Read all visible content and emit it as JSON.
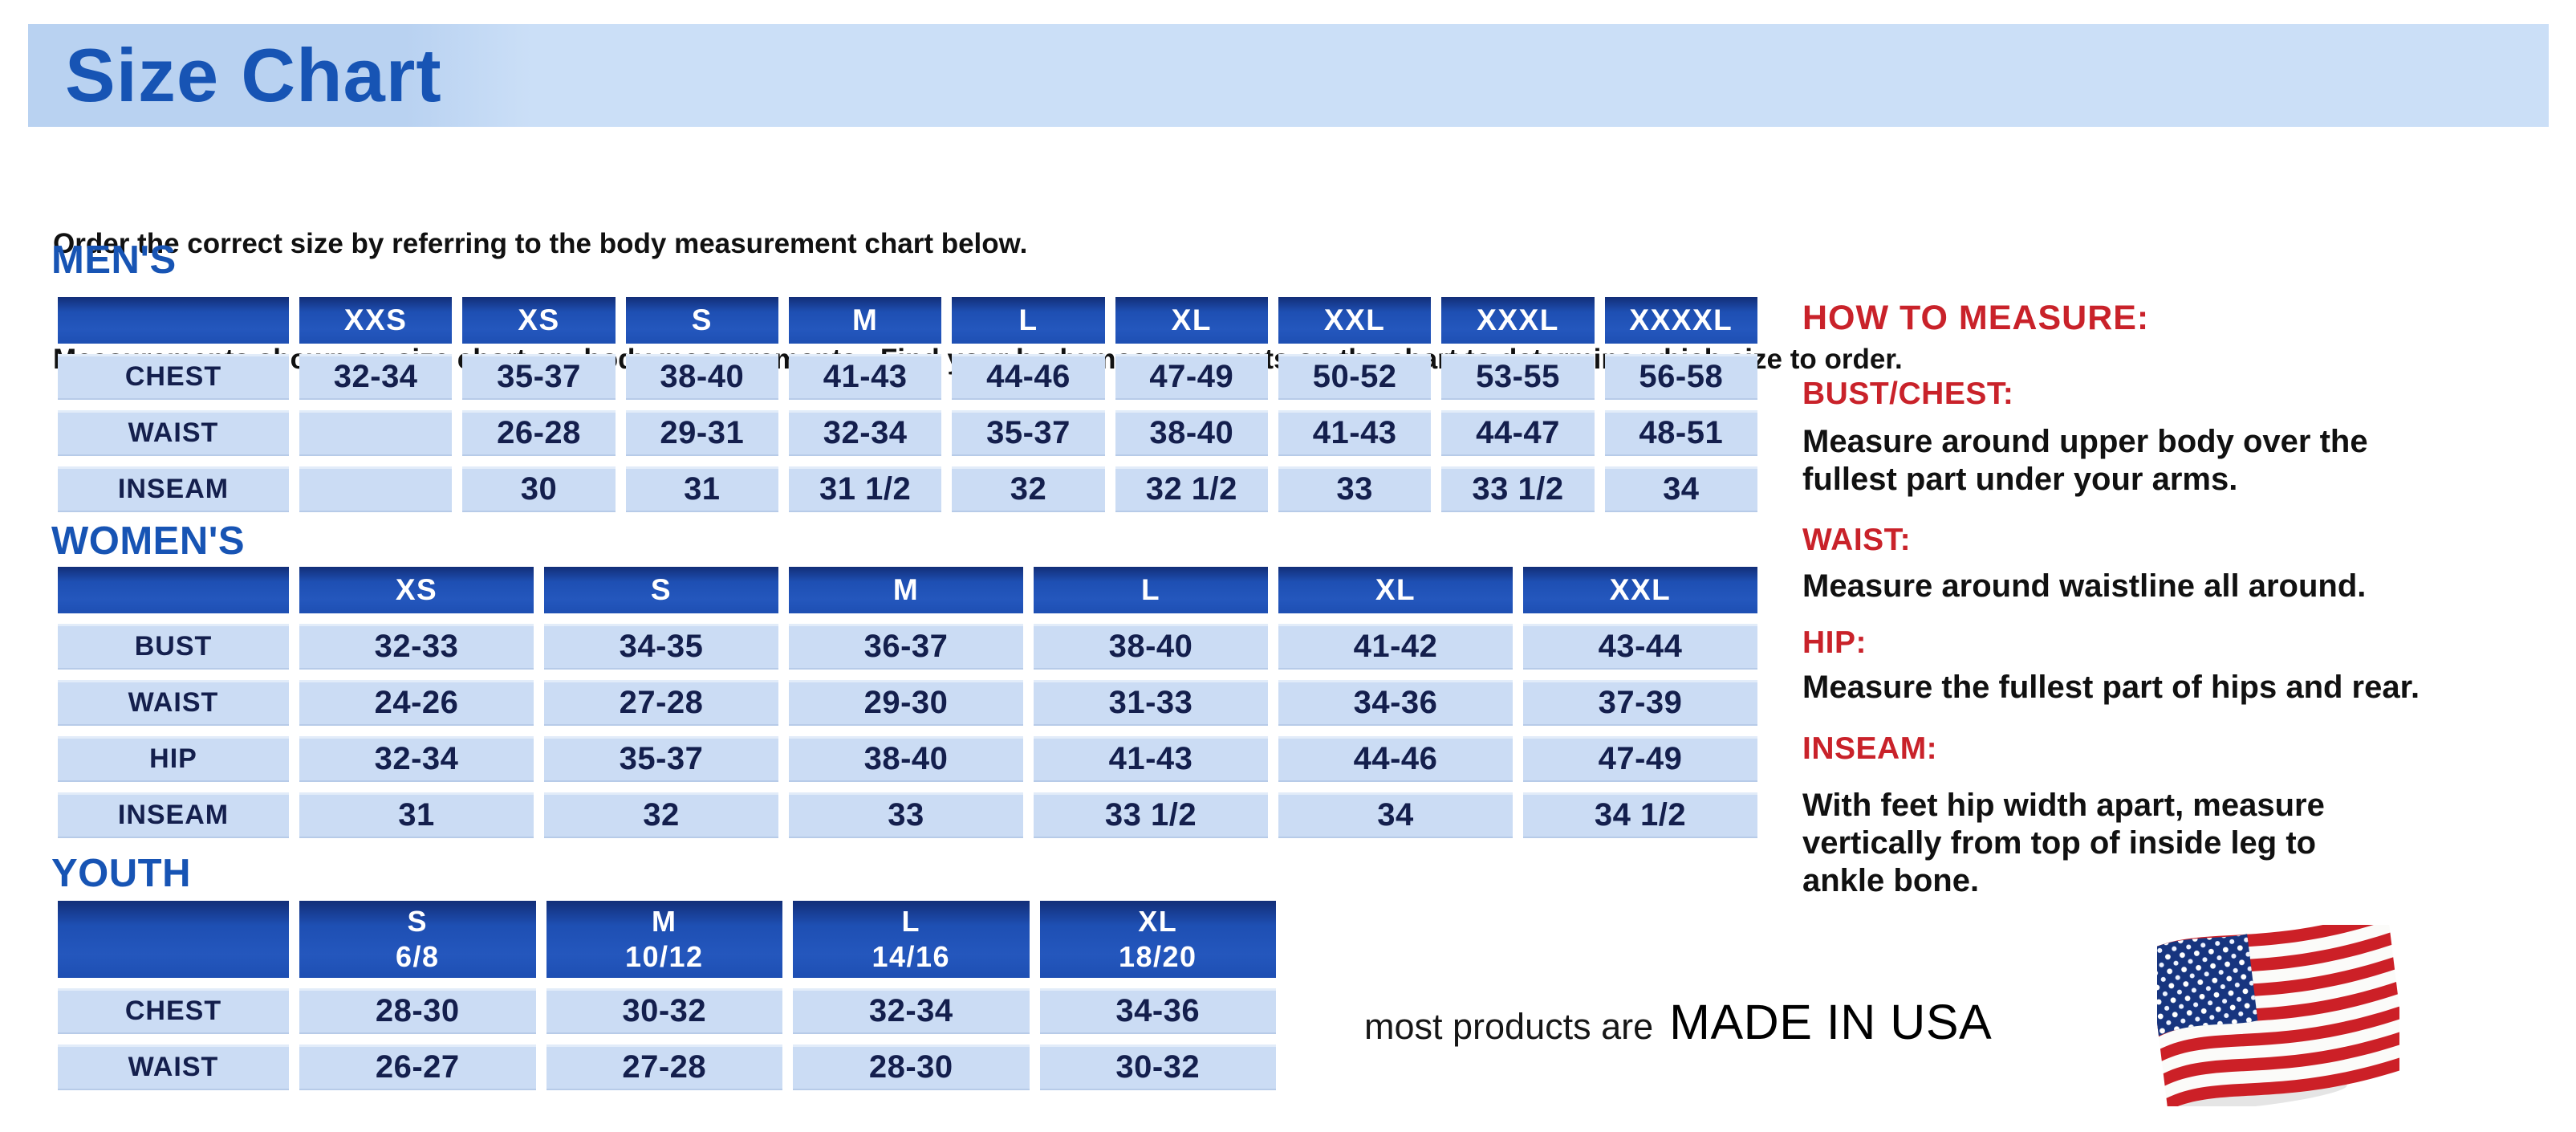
{
  "page": {
    "title": "Size Chart",
    "intro": [
      "Order the correct size by referring to the body measurement chart below.",
      "Measurements shown on size chart are body measurements.  Find your body measurements on the chart to determine which size to order."
    ]
  },
  "colors": {
    "band_blue_left": "#b9d2f1",
    "band_blue_right": "#cbdff7",
    "title_blue": "#1754b4",
    "section_blue": "#1754b4",
    "header_blue": "#1e4fb3",
    "header_blue_dark": "#122e78",
    "cell_blue": "#cbdcf4",
    "cell_text": "#141f4d",
    "red": "#c9222a",
    "text_black": "#111111"
  },
  "tables": {
    "mens": {
      "section_label": "MEN'S",
      "columns": [
        "XXS",
        "XS",
        "S",
        "M",
        "L",
        "XL",
        "XXL",
        "XXXL",
        "XXXXL"
      ],
      "rows": [
        {
          "label": "CHEST",
          "cells": [
            "32-34",
            "35-37",
            "38-40",
            "41-43",
            "44-46",
            "47-49",
            "50-52",
            "53-55",
            "56-58"
          ]
        },
        {
          "label": "WAIST",
          "cells": [
            "",
            "26-28",
            "29-31",
            "32-34",
            "35-37",
            "38-40",
            "41-43",
            "44-47",
            "48-51"
          ]
        },
        {
          "label": "INSEAM",
          "cells": [
            "",
            "30",
            "31",
            "31 1/2",
            "32",
            "32 1/2",
            "33",
            "33 1/2",
            "34"
          ]
        }
      ]
    },
    "womens": {
      "section_label": "WOMEN'S",
      "columns": [
        "XS",
        "S",
        "M",
        "L",
        "XL",
        "XXL"
      ],
      "rows": [
        {
          "label": "BUST",
          "cells": [
            "32-33",
            "34-35",
            "36-37",
            "38-40",
            "41-42",
            "43-44"
          ]
        },
        {
          "label": "WAIST",
          "cells": [
            "24-26",
            "27-28",
            "29-30",
            "31-33",
            "34-36",
            "37-39"
          ]
        },
        {
          "label": "HIP",
          "cells": [
            "32-34",
            "35-37",
            "38-40",
            "41-43",
            "44-46",
            "47-49"
          ]
        },
        {
          "label": "INSEAM",
          "cells": [
            "31",
            "32",
            "33",
            "33 1/2",
            "34",
            "34 1/2"
          ]
        }
      ]
    },
    "youth": {
      "section_label": "YOUTH",
      "columns": [
        "S\n6/8",
        "M\n10/12",
        "L\n14/16",
        "XL\n18/20"
      ],
      "rows": [
        {
          "label": "CHEST",
          "cells": [
            "28-30",
            "30-32",
            "32-34",
            "34-36"
          ]
        },
        {
          "label": "WAIST",
          "cells": [
            "26-27",
            "27-28",
            "28-30",
            "30-32"
          ]
        }
      ]
    }
  },
  "how_to_measure": {
    "title": "HOW TO MEASURE:",
    "sections": [
      {
        "heading": "BUST/CHEST:",
        "text": "Measure around upper body over the\nfullest part under your arms."
      },
      {
        "heading": "WAIST:",
        "text": "Measure around waistline all around."
      },
      {
        "heading": "HIP:",
        "text": "Measure the fullest part of hips and rear."
      },
      {
        "heading": "INSEAM:",
        "text": "With feet hip width apart, measure\nvertically from top of inside leg to\nankle bone."
      }
    ]
  },
  "footer": {
    "prefix": "most products are",
    "made_in": "MADE IN USA",
    "flag_icon": "usa-flag-icon"
  }
}
